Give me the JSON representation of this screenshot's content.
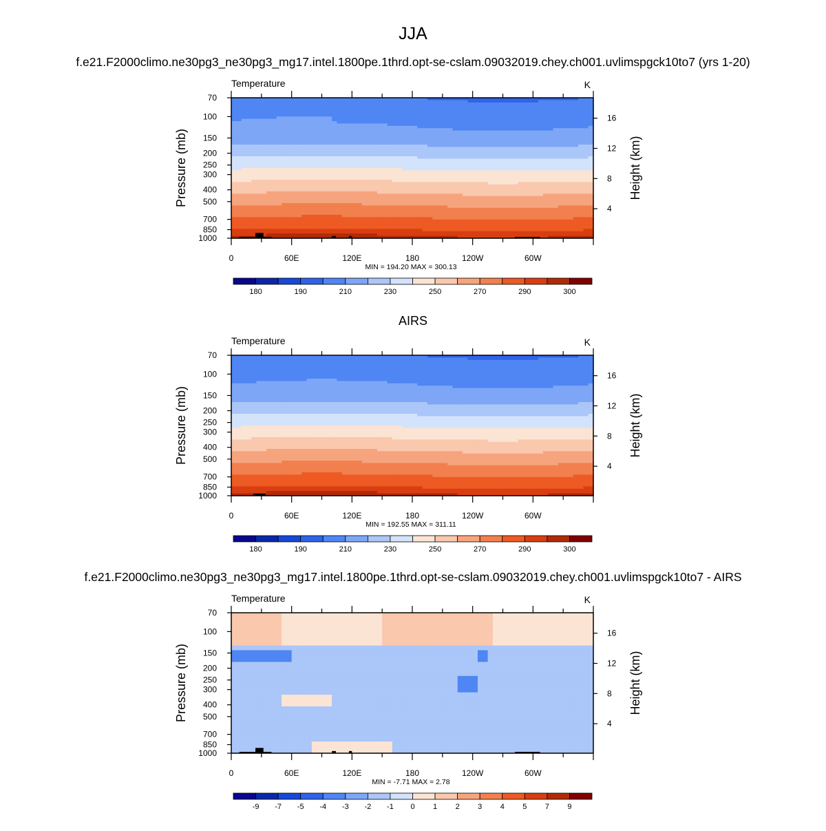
{
  "page": {
    "title": "JJA"
  },
  "chart_data": [
    {
      "type": "heatmap",
      "panel": "model",
      "heading": "f.e21.F2000climo.ne30pg3_ne30pg3_mg17.intel.1800pe.1thrd.opt-se-cslam.09032019.chey.ch001.uvlimspgck10to7 (yrs 1-20)",
      "variable": "Temperature",
      "units": "K",
      "ylabel": "Pressure (mb)",
      "ylabel_right": "Height (km)",
      "pressure_ticks": [
        70,
        100,
        150,
        200,
        250,
        300,
        400,
        500,
        700,
        850,
        1000
      ],
      "height_ticks": [
        4,
        8,
        12,
        16
      ],
      "lon_ticks": [
        {
          "lon": 0,
          "label": "0"
        },
        {
          "lon": 60,
          "label": "60E"
        },
        {
          "lon": 120,
          "label": "120E"
        },
        {
          "lon": 180,
          "label": "180"
        },
        {
          "lon": 240,
          "label": "120W"
        },
        {
          "lon": 300,
          "label": "60W"
        }
      ],
      "xlim": [
        0,
        360
      ],
      "ylim_mb": [
        1000,
        70
      ],
      "stats_text": "MIN = 194.20  MAX = 300.13",
      "min": 194.2,
      "max": 300.13,
      "colorbar_labels": [
        "180",
        "190",
        "210",
        "230",
        "250",
        "270",
        "290",
        "300"
      ]
    },
    {
      "type": "heatmap",
      "panel": "observations",
      "heading": "AIRS",
      "variable": "Temperature",
      "units": "K",
      "ylabel": "Pressure (mb)",
      "ylabel_right": "Height (km)",
      "pressure_ticks": [
        70,
        100,
        150,
        200,
        250,
        300,
        400,
        500,
        700,
        850,
        1000
      ],
      "height_ticks": [
        4,
        8,
        12,
        16
      ],
      "lon_ticks": [
        {
          "lon": 0,
          "label": "0"
        },
        {
          "lon": 60,
          "label": "60E"
        },
        {
          "lon": 120,
          "label": "120E"
        },
        {
          "lon": 180,
          "label": "180"
        },
        {
          "lon": 240,
          "label": "120W"
        },
        {
          "lon": 300,
          "label": "60W"
        }
      ],
      "xlim": [
        0,
        360
      ],
      "ylim_mb": [
        1000,
        70
      ],
      "stats_text": "MIN = 192.55  MAX = 311.11",
      "min": 192.55,
      "max": 311.11,
      "colorbar_labels": [
        "180",
        "190",
        "210",
        "230",
        "250",
        "270",
        "290",
        "300"
      ]
    },
    {
      "type": "heatmap",
      "panel": "difference",
      "heading": "f.e21.F2000climo.ne30pg3_ne30pg3_mg17.intel.1800pe.1thrd.opt-se-cslam.09032019.chey.ch001.uvlimspgck10to7 - AIRS",
      "variable": "Temperature",
      "units": "K",
      "ylabel": "Pressure (mb)",
      "ylabel_right": "Height (km)",
      "pressure_ticks": [
        70,
        100,
        150,
        200,
        250,
        300,
        400,
        500,
        700,
        850,
        1000
      ],
      "height_ticks": [
        4,
        8,
        12,
        16
      ],
      "lon_ticks": [
        {
          "lon": 0,
          "label": "0"
        },
        {
          "lon": 60,
          "label": "60E"
        },
        {
          "lon": 120,
          "label": "120E"
        },
        {
          "lon": 180,
          "label": "180"
        },
        {
          "lon": 240,
          "label": "120W"
        },
        {
          "lon": 300,
          "label": "60W"
        }
      ],
      "xlim": [
        0,
        360
      ],
      "ylim_mb": [
        1000,
        70
      ],
      "stats_text": "MIN =  -7.71  MAX =   2.78",
      "min": -7.71,
      "max": 2.78,
      "colorbar_labels": [
        "-9",
        "-7",
        "-5",
        "-4",
        "-3",
        "-2",
        "-1",
        "0",
        "1",
        "2",
        "3",
        "4",
        "5",
        "7",
        "9"
      ]
    }
  ],
  "colors": {
    "colormap": [
      "#08088a",
      "#0b27a8",
      "#1748d8",
      "#2e63ea",
      "#4f86f3",
      "#7ea6f7",
      "#abc6f8",
      "#d3e3fb",
      "#fbe4d3",
      "#f9c8ad",
      "#f6a47e",
      "#f2804f",
      "#ed5a23",
      "#d93e10",
      "#b02a08",
      "#800000"
    ],
    "terrain": "#000000"
  }
}
